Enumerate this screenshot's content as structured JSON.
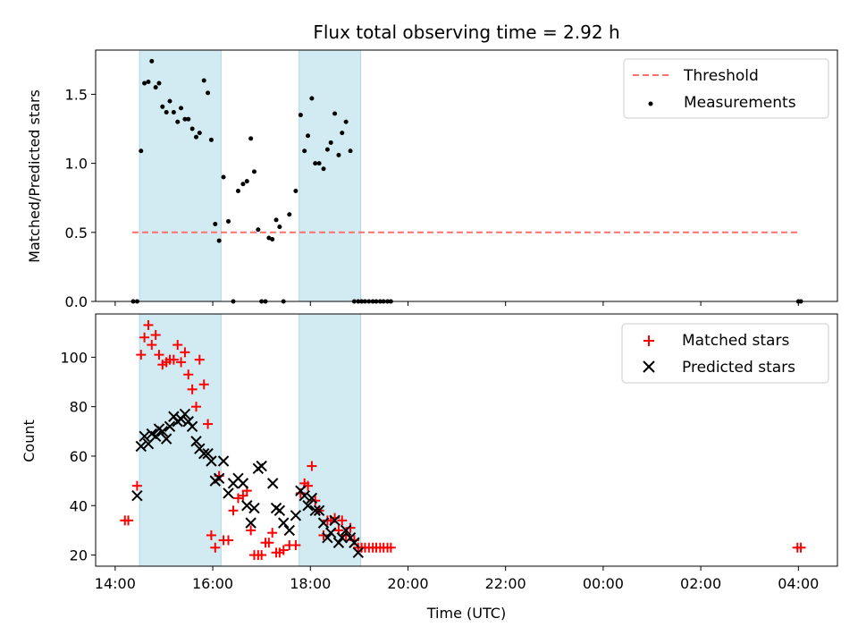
{
  "chart_data": [
    {
      "type": "scatter",
      "title": "Flux total observing time = 2.92 h",
      "ylabel": "Matched/Predicted stars",
      "xlim_hours": [
        13.6,
        28.8
      ],
      "ylim": [
        0,
        1.82
      ],
      "yticks": [
        0.0,
        0.5,
        1.0,
        1.5
      ],
      "ytick_labels": [
        "0.0",
        "0.5",
        "1.0",
        "1.5"
      ],
      "shaded_intervals_hours": [
        [
          14.5,
          16.17
        ],
        [
          17.77,
          19.03
        ]
      ],
      "shade_color": "#add8e6",
      "threshold": {
        "name": "Threshold",
        "value": 0.5,
        "x_range_hours": [
          14.35,
          28.0
        ],
        "color": "#ff6f6f"
      },
      "legend": {
        "position": "top-right",
        "entries": [
          "Threshold",
          "Measurements"
        ]
      },
      "series": [
        {
          "name": "Measurements",
          "color": "#000000",
          "marker": "dot",
          "x_hours": [
            14.37,
            14.45,
            14.53,
            14.6,
            14.68,
            14.75,
            14.83,
            14.9,
            14.97,
            15.05,
            15.12,
            15.2,
            15.28,
            15.35,
            15.43,
            15.5,
            15.58,
            15.66,
            15.73,
            15.82,
            15.9,
            15.97,
            16.05,
            16.13,
            16.22,
            16.32,
            16.42,
            16.52,
            16.62,
            16.7,
            16.78,
            16.85,
            16.93,
            17.0,
            17.08,
            17.15,
            17.22,
            17.3,
            17.37,
            17.45,
            17.57,
            17.7,
            17.8,
            17.88,
            17.95,
            18.03,
            18.1,
            18.18,
            18.27,
            18.35,
            18.42,
            18.5,
            18.58,
            18.65,
            18.73,
            18.82,
            18.9,
            18.98,
            19.05,
            19.12,
            19.2,
            19.28,
            19.35,
            19.43,
            19.5,
            19.58,
            19.65,
            28.0,
            28.05
          ],
          "y": [
            0.0,
            0.0,
            1.09,
            1.58,
            1.59,
            1.74,
            1.55,
            1.58,
            1.41,
            1.37,
            1.45,
            1.37,
            1.3,
            1.4,
            1.32,
            1.32,
            1.25,
            1.19,
            1.22,
            1.6,
            1.51,
            1.17,
            0.56,
            0.44,
            0.9,
            0.58,
            0.0,
            0.8,
            0.85,
            0.87,
            1.18,
            0.94,
            0.52,
            0.0,
            0.0,
            0.46,
            0.45,
            0.59,
            0.54,
            0.0,
            0.63,
            0.8,
            1.35,
            1.09,
            1.2,
            1.47,
            1.0,
            1.0,
            0.96,
            1.1,
            1.15,
            1.36,
            1.06,
            1.22,
            1.3,
            1.09,
            0.0,
            0.0,
            0.0,
            0.0,
            0.0,
            0.0,
            0.0,
            0.0,
            0.0,
            0.0,
            0.0,
            0.0,
            0.0
          ]
        }
      ]
    },
    {
      "type": "scatter",
      "xlabel": "Time (UTC)",
      "ylabel": "Count",
      "xlim_hours": [
        13.6,
        28.8
      ],
      "ylim": [
        15.5,
        117.5
      ],
      "yticks": [
        20,
        40,
        60,
        80,
        100
      ],
      "xtick_hours": [
        14,
        16,
        18,
        20,
        22,
        24,
        26,
        28
      ],
      "xtick_labels": [
        "14:00",
        "16:00",
        "18:00",
        "20:00",
        "22:00",
        "00:00",
        "02:00",
        "04:00"
      ],
      "shaded_intervals_hours": [
        [
          14.5,
          16.17
        ],
        [
          17.77,
          19.03
        ]
      ],
      "legend": {
        "position": "top-right",
        "entries": [
          "Matched stars",
          "Predicted stars"
        ]
      },
      "series": [
        {
          "name": "Matched stars",
          "color": "#ff0000",
          "marker": "plus",
          "x_hours": [
            14.2,
            14.27,
            14.45,
            14.53,
            14.6,
            14.68,
            14.75,
            14.83,
            14.9,
            14.97,
            15.05,
            15.12,
            15.2,
            15.28,
            15.35,
            15.43,
            15.5,
            15.58,
            15.66,
            15.73,
            15.82,
            15.9,
            15.97,
            16.05,
            16.13,
            16.22,
            16.32,
            16.42,
            16.52,
            16.62,
            16.7,
            16.78,
            16.85,
            16.93,
            17.0,
            17.08,
            17.15,
            17.22,
            17.3,
            17.37,
            17.45,
            17.57,
            17.7,
            17.8,
            17.88,
            17.95,
            18.03,
            18.1,
            18.18,
            18.27,
            18.35,
            18.42,
            18.5,
            18.58,
            18.65,
            18.73,
            18.82,
            18.9,
            18.98,
            19.05,
            19.12,
            19.2,
            19.28,
            19.35,
            19.43,
            19.5,
            19.58,
            19.65,
            27.98,
            28.05
          ],
          "y": [
            34,
            34,
            48,
            101,
            108,
            113,
            105,
            109,
            101,
            97,
            98,
            99,
            99,
            105,
            98,
            102,
            93,
            87,
            80,
            99,
            89,
            73,
            28,
            23,
            52,
            26,
            26,
            38,
            43,
            44,
            46,
            30,
            20,
            20,
            20,
            25,
            25,
            29,
            21,
            21,
            22,
            24,
            24,
            45,
            49,
            48,
            56,
            42,
            38,
            28,
            34,
            34,
            35,
            30,
            34,
            28,
            31,
            26,
            23,
            23,
            23,
            23,
            23,
            23,
            23,
            23,
            23,
            23,
            23,
            23
          ]
        },
        {
          "name": "Predicted stars",
          "color": "#000000",
          "marker": "cross",
          "x_hours": [
            14.45,
            14.53,
            14.6,
            14.68,
            14.75,
            14.83,
            14.9,
            14.97,
            15.05,
            15.12,
            15.2,
            15.28,
            15.35,
            15.43,
            15.5,
            15.58,
            15.66,
            15.73,
            15.82,
            15.9,
            15.97,
            16.05,
            16.13,
            16.22,
            16.32,
            16.42,
            16.52,
            16.62,
            16.7,
            16.78,
            16.85,
            16.93,
            17.0,
            17.23,
            17.3,
            17.37,
            17.45,
            17.57,
            17.7,
            17.8,
            17.88,
            17.95,
            18.03,
            18.1,
            18.18,
            18.27,
            18.35,
            18.42,
            18.5,
            18.58,
            18.65,
            18.73,
            18.82,
            18.9,
            18.98
          ],
          "y": [
            44,
            64,
            68,
            65,
            69,
            68,
            71,
            70,
            67,
            72,
            76,
            74,
            75,
            77,
            74,
            72,
            66,
            63,
            61,
            61,
            58,
            50,
            51,
            58,
            45,
            49,
            51,
            49,
            40,
            33,
            39,
            55,
            56,
            49,
            39,
            38,
            33,
            30,
            36,
            46,
            44,
            40,
            43,
            38,
            38,
            33,
            27,
            29,
            34,
            25,
            27,
            30,
            27,
            25,
            21
          ]
        }
      ]
    }
  ]
}
